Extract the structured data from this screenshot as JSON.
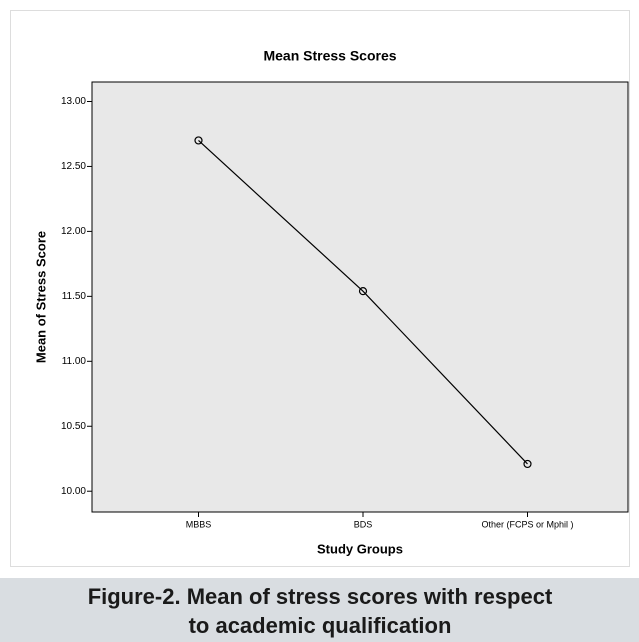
{
  "chart_data": {
    "type": "line",
    "title": "Mean Stress Scores",
    "xlabel": "Study Groups",
    "ylabel": "Mean of Stress Score",
    "categories": [
      "MBBS",
      "BDS",
      "Other (FCPS or Mphil )"
    ],
    "series": [
      {
        "name": "Mean of Stress Score",
        "color": "#000000",
        "values": [
          12.7,
          11.54,
          10.21
        ]
      }
    ],
    "ylim": [
      9.84,
      13.15
    ],
    "yticks": [
      {
        "value": 10,
        "label": "10.00"
      },
      {
        "value": 10.5,
        "label": "10.50"
      },
      {
        "value": 11,
        "label": "11.00"
      },
      {
        "value": 11.5,
        "label": "11.50"
      },
      {
        "value": 12,
        "label": "12.00"
      },
      {
        "value": 12.5,
        "label": "12.50"
      },
      {
        "value": 13,
        "label": "13.00"
      }
    ],
    "grid": false
  },
  "caption": [
    "Figure-2. Mean of stress scores with respect",
    "to academic qualification"
  ]
}
